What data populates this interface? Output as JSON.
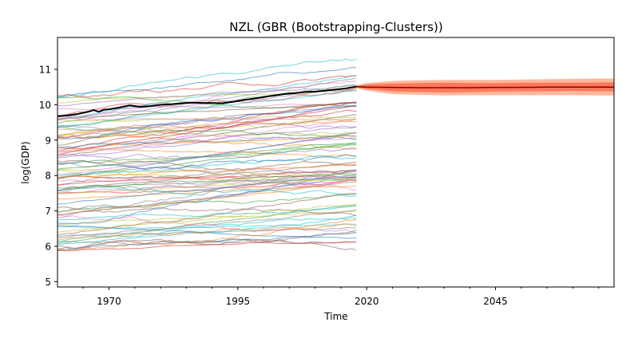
{
  "chart_data": {
    "type": "line",
    "title": "NZL (GBR (Bootstrapping-Clusters))",
    "xlabel": "Time",
    "ylabel": "log(GDP)",
    "xlim": [
      1960,
      2068
    ],
    "ylim": [
      4.85,
      11.9
    ],
    "x_ticks": [
      1970,
      1995,
      2020,
      2045
    ],
    "y_ticks": [
      5,
      6,
      7,
      8,
      9,
      10,
      11
    ],
    "grid": false,
    "legend": "none",
    "history_years": [
      1960,
      2018
    ],
    "forecast_years": [
      2019,
      2068
    ],
    "background_series_count": 90,
    "background_series_value_range": [
      5.7,
      11.3
    ],
    "highlight_series": {
      "color": "#000000",
      "x": [
        1960,
        1962,
        1964,
        1966,
        1967,
        1968,
        1969,
        1970,
        1972,
        1974,
        1976,
        1978,
        1980,
        1982,
        1984,
        1986,
        1988,
        1990,
        1992,
        1994,
        1996,
        1998,
        2000,
        2002,
        2004,
        2006,
        2008,
        2010,
        2012,
        2014,
        2016,
        2018
      ],
      "values": [
        9.68,
        9.7,
        9.74,
        9.8,
        9.85,
        9.8,
        9.86,
        9.87,
        9.92,
        9.98,
        9.94,
        9.96,
        10.0,
        10.01,
        10.04,
        10.06,
        10.05,
        10.05,
        10.04,
        10.08,
        10.13,
        10.17,
        10.22,
        10.26,
        10.3,
        10.33,
        10.36,
        10.37,
        10.4,
        10.43,
        10.46,
        10.51
      ]
    },
    "forecast": {
      "x": [
        2018,
        2020,
        2025,
        2030,
        2035,
        2040,
        2045,
        2050,
        2055,
        2060,
        2065,
        2068
      ],
      "median": [
        10.51,
        10.5,
        10.49,
        10.48,
        10.48,
        10.48,
        10.49,
        10.49,
        10.5,
        10.5,
        10.5,
        10.5
      ],
      "band_inner_low": [
        10.49,
        10.44,
        10.38,
        10.36,
        10.35,
        10.36,
        10.37,
        10.38,
        10.38,
        10.39,
        10.38,
        10.38
      ],
      "band_inner_high": [
        10.53,
        10.57,
        10.6,
        10.61,
        10.62,
        10.61,
        10.61,
        10.62,
        10.62,
        10.62,
        10.63,
        10.63
      ],
      "band_outer_low": [
        10.47,
        10.4,
        10.3,
        10.28,
        10.26,
        10.27,
        10.27,
        10.27,
        10.27,
        10.27,
        10.26,
        10.26
      ],
      "band_outer_high": [
        10.55,
        10.61,
        10.67,
        10.69,
        10.7,
        10.7,
        10.7,
        10.71,
        10.72,
        10.73,
        10.74,
        10.74
      ],
      "median_color": "#8b0000",
      "inner_band_color": "#ff6347",
      "outer_band_color": "#ffa07a"
    },
    "palette": [
      "#1f77b4",
      "#ff7f0e",
      "#2ca02c",
      "#d62728",
      "#9467bd",
      "#8c564b",
      "#e377c2",
      "#7f7f7f",
      "#bcbd22",
      "#17becf"
    ]
  }
}
